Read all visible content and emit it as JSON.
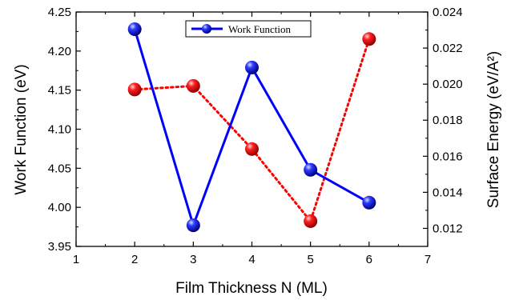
{
  "chart_data": {
    "type": "line",
    "xlabel": "Film Thickness N (ML)",
    "ylabel_left": "Work Function (eV)",
    "ylabel_right": "Surface Energy (eV/A²)",
    "xlim": [
      1,
      7
    ],
    "ylim_left": [
      3.95,
      4.25
    ],
    "ylim_right": [
      0.011,
      0.024
    ],
    "x_ticks": [
      "1",
      "2",
      "3",
      "4",
      "5",
      "6",
      "7"
    ],
    "y_left_ticks": [
      "3.95",
      "4.00",
      "4.05",
      "4.10",
      "4.15",
      "4.20",
      "4.25"
    ],
    "y_right_ticks": [
      "0.012",
      "0.014",
      "0.016",
      "0.018",
      "0.020",
      "0.022",
      "0.024"
    ],
    "grid": false,
    "legend": {
      "position": "top-center",
      "entries": [
        "Work Function"
      ]
    },
    "series": [
      {
        "name": "Work Function",
        "axis": "left",
        "color": "#0000ff",
        "line_style": "solid",
        "x": [
          2,
          3,
          4,
          5,
          6
        ],
        "y": [
          4.228,
          3.977,
          4.179,
          4.048,
          4.006
        ]
      },
      {
        "axis": "right",
        "color": "#ff0000",
        "line_style": "dotted",
        "x": [
          2,
          3,
          4,
          5,
          6
        ],
        "y": [
          0.0197,
          0.0199,
          0.0164,
          0.0124,
          0.0225
        ]
      }
    ]
  }
}
